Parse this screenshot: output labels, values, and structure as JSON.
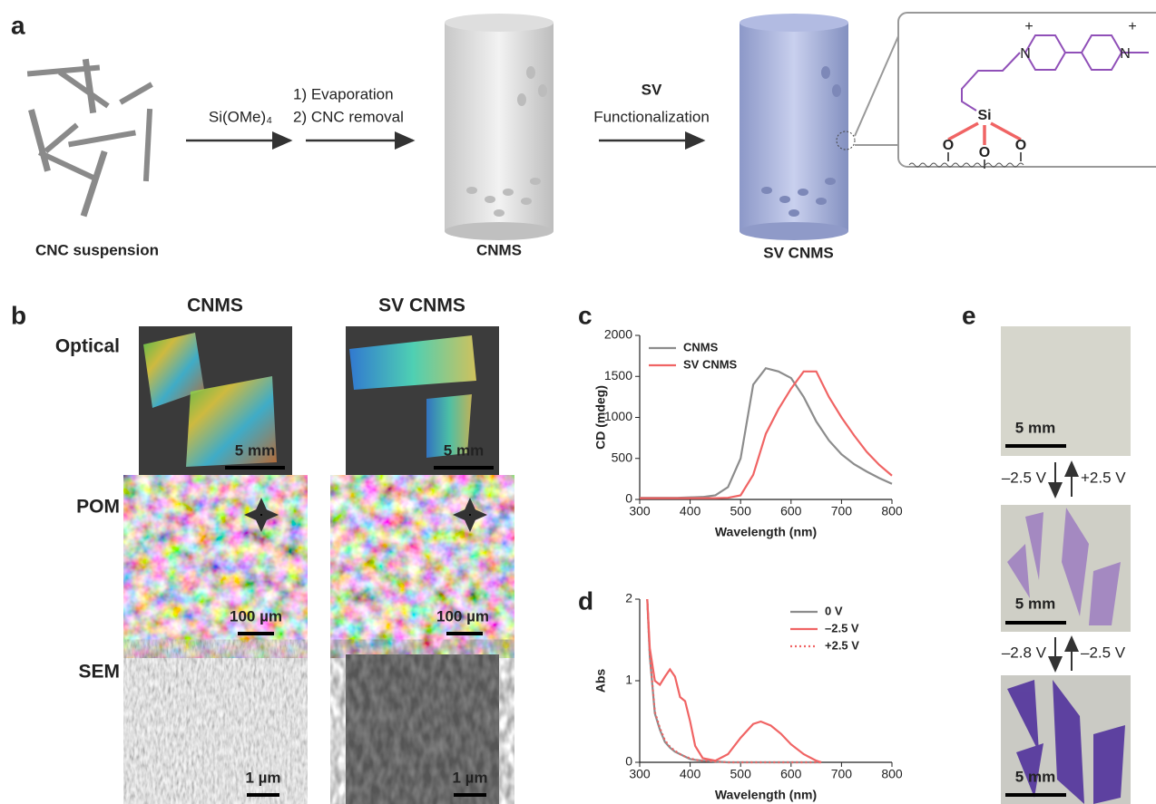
{
  "panel_labels": [
    "a",
    "b",
    "c",
    "d",
    "e"
  ],
  "panel_a": {
    "suspension_label": "CNC suspension",
    "reagent": "Si(OMe)₄",
    "step1": "1)  Evaporation",
    "step2": "2)  CNC removal",
    "sv": "SV",
    "functionalization": "Functionalization",
    "cnms_label": "CNMS",
    "sv_cnms_label": "SV CNMS",
    "structure": {
      "nitrogen": "N",
      "charge": "+",
      "silicon": "Si",
      "oxygen": "O"
    }
  },
  "panel_b": {
    "columns": [
      "CNMS",
      "SV CNMS"
    ],
    "rows": [
      "Optical",
      "POM",
      "SEM"
    ],
    "scale_bars": [
      "5 mm",
      "100 µm",
      "1 µm"
    ]
  },
  "panel_e": {
    "scale_bar": "5 mm",
    "steps": [
      [
        "–2.5 V",
        "+2.5 V"
      ],
      [
        "–2.8 V",
        "–2.5 V"
      ]
    ]
  },
  "chart_data": [
    {
      "type": "line",
      "x_label": "Wavelength (nm)",
      "y_label": "CD (mdeg)",
      "x": [
        300,
        325,
        350,
        375,
        400,
        425,
        450,
        475,
        500,
        525,
        550,
        575,
        600,
        625,
        650,
        675,
        700,
        725,
        750,
        775,
        800
      ],
      "series": [
        {
          "name": "CNMS",
          "color": "#8c8c8c",
          "values": [
            20,
            20,
            20,
            20,
            25,
            30,
            50,
            150,
            500,
            1400,
            1600,
            1560,
            1480,
            1250,
            950,
            720,
            550,
            430,
            340,
            260,
            190
          ]
        },
        {
          "name": "SV CNMS",
          "color": "#f06464",
          "values": [
            15,
            15,
            15,
            15,
            15,
            15,
            15,
            20,
            50,
            300,
            800,
            1100,
            1350,
            1560,
            1560,
            1250,
            1000,
            780,
            580,
            420,
            290
          ]
        }
      ],
      "xlim": [
        300,
        800
      ],
      "xticks": [
        300,
        400,
        500,
        600,
        700,
        800
      ],
      "ylim": [
        0,
        2000
      ],
      "yticks": [
        0,
        500,
        1000,
        1500,
        2000
      ],
      "legend": "upper left"
    },
    {
      "type": "line",
      "x_label": "Wavelength (nm)",
      "y_label": "Abs",
      "x": [
        315,
        320,
        330,
        340,
        350,
        360,
        370,
        380,
        390,
        400,
        410,
        425,
        450,
        475,
        500,
        525,
        540,
        560,
        580,
        600,
        625,
        650,
        660
      ],
      "series": [
        {
          "name": "0 V",
          "color": "#8c8c8c",
          "values": [
            2,
            1.3,
            0.6,
            0.4,
            0.25,
            0.18,
            0.13,
            0.1,
            0.07,
            0.04,
            0.03,
            0.02,
            0.01,
            0,
            0,
            0,
            0,
            0,
            0,
            0,
            0,
            0,
            0
          ]
        },
        {
          "name": "–2.5 V",
          "color": "#f06464",
          "values": [
            2,
            1.4,
            1.0,
            0.95,
            1.05,
            1.14,
            1.05,
            0.8,
            0.75,
            0.5,
            0.2,
            0.05,
            0.02,
            0.1,
            0.3,
            0.47,
            0.5,
            0.45,
            0.35,
            0.22,
            0.1,
            0.02,
            0
          ]
        },
        {
          "name": "+2.5 V",
          "color": "#f06464",
          "dash": "dotted",
          "values": [
            2,
            1.32,
            0.62,
            0.42,
            0.27,
            0.19,
            0.14,
            0.1,
            0.07,
            0.05,
            0.03,
            0.02,
            0.01,
            0,
            0,
            0,
            0,
            0,
            0,
            0,
            0,
            0,
            0
          ]
        }
      ],
      "xlim": [
        300,
        800
      ],
      "xticks": [
        300,
        400,
        500,
        600,
        700,
        800
      ],
      "ylim": [
        0,
        2
      ],
      "yticks": [
        0,
        1,
        2
      ],
      "legend": "upper right"
    }
  ]
}
